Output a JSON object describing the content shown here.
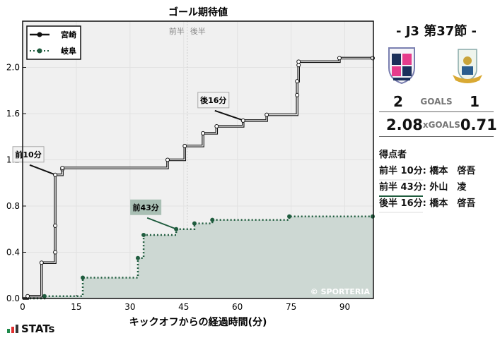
{
  "chart_data": {
    "type": "line",
    "title": "ゴール期待値",
    "xlabel": "キックオフからの経過時間(分)",
    "ylabel": "",
    "xlim": [
      0,
      98
    ],
    "ylim": [
      0,
      2.4
    ],
    "xticks": [
      0,
      15,
      30,
      45,
      60,
      75,
      90
    ],
    "yticks": [
      0.0,
      0.4,
      0.8,
      1.2,
      1.6,
      2.0
    ],
    "ytick_labels": [
      "0.0",
      "0.4",
      "0.8",
      "1.2",
      "1.6",
      "2.0"
    ],
    "grid": true,
    "legend_position": "top-left",
    "half_labels": [
      "前半",
      "後半"
    ],
    "halftime_x": 46,
    "watermark": "© SPORTERIA",
    "series": [
      {
        "name": "宮崎",
        "color": "#111111",
        "style": "solid-step",
        "points": [
          [
            0,
            0
          ],
          [
            1.4,
            0.02
          ],
          [
            5.3,
            0.31
          ],
          [
            9.1,
            0.4
          ],
          [
            9.1,
            0.63
          ],
          [
            9.1,
            1.07
          ],
          [
            11.1,
            1.12
          ],
          [
            11.1,
            1.13
          ],
          [
            40.5,
            1.2
          ],
          [
            45.3,
            1.32
          ],
          [
            50.4,
            1.43
          ],
          [
            54.2,
            1.49
          ],
          [
            61.6,
            1.54
          ],
          [
            68.2,
            1.59
          ],
          [
            76.7,
            1.76
          ],
          [
            76.7,
            1.88
          ],
          [
            77.1,
            2.02
          ],
          [
            77.1,
            2.05
          ],
          [
            88.5,
            2.08
          ],
          [
            97.8,
            2.08
          ]
        ]
      },
      {
        "name": "岐阜",
        "color": "#1f5c3e",
        "style": "dotted-step",
        "points": [
          [
            0,
            0
          ],
          [
            6.1,
            0.02
          ],
          [
            16.8,
            0.18
          ],
          [
            32.2,
            0.35
          ],
          [
            33.8,
            0.55
          ],
          [
            42.9,
            0.6
          ],
          [
            48.0,
            0.65
          ],
          [
            53.0,
            0.68
          ],
          [
            74.5,
            0.71
          ],
          [
            97.8,
            0.71
          ]
        ]
      }
    ],
    "annotations": [
      {
        "label": "前10分",
        "x": 9.1,
        "y": 1.07,
        "series": "宮崎"
      },
      {
        "label": "前43分",
        "x": 42.9,
        "y": 0.6,
        "series": "岐阜"
      },
      {
        "label": "後16分",
        "x": 61.6,
        "y": 1.54,
        "series": "宮崎"
      }
    ]
  },
  "match": {
    "round": "-  J3 第37節  -",
    "goals_label": "GOALS",
    "xgoals_label": "xGOALS",
    "home": {
      "goals": "2",
      "xg": "2.08"
    },
    "away": {
      "goals": "1",
      "xg": "0.71"
    }
  },
  "scorers": {
    "heading": "得点者",
    "items": [
      {
        "when": "前半 10分",
        "name": ": 橋本　啓吾",
        "team": "home"
      },
      {
        "when": "前半 43分",
        "name": ": 外山　凌",
        "team": "away"
      },
      {
        "when": "後半 16分",
        "name": ": 橋本　啓吾",
        "team": "home"
      }
    ]
  },
  "brand": "STATs"
}
